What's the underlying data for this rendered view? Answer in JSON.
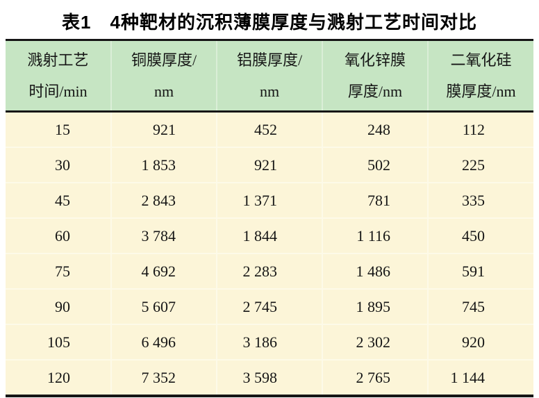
{
  "title": "表1　4种靶材的沉积薄膜厚度与溅射工艺时间对比",
  "table": {
    "columns": [
      {
        "id": "time",
        "line1": "溅射工艺",
        "line2": "时间/min"
      },
      {
        "id": "cu",
        "line1": "铜膜厚度/",
        "line2": "nm"
      },
      {
        "id": "al",
        "line1": "铝膜厚度/",
        "line2": "nm"
      },
      {
        "id": "zno",
        "line1": "氧化锌膜",
        "line2": "厚度/nm"
      },
      {
        "id": "sio2",
        "line1": "二氧化硅",
        "line2": "膜厚度/nm"
      }
    ],
    "rows": [
      [
        "15",
        "921",
        "452",
        "248",
        "112"
      ],
      [
        "30",
        "1 853",
        "921",
        "502",
        "225"
      ],
      [
        "45",
        "2 843",
        "1 371",
        "781",
        "335"
      ],
      [
        "60",
        "3 784",
        "1 844",
        "1 116",
        "450"
      ],
      [
        "75",
        "4 692",
        "2 283",
        "1 486",
        "591"
      ],
      [
        "90",
        "5 607",
        "2 745",
        "1 895",
        "745"
      ],
      [
        "105",
        "6 496",
        "3 186",
        "2 302",
        "920"
      ],
      [
        "120",
        "7 352",
        "3 598",
        "2 765",
        "1 144"
      ]
    ]
  },
  "colors": {
    "header_bg": "#c6e5c3",
    "body_bg": "#fcf5d8",
    "header_divider": "#daeed7",
    "body_divider": "#fdfae8",
    "rule": "#151515",
    "text": "#151515"
  }
}
